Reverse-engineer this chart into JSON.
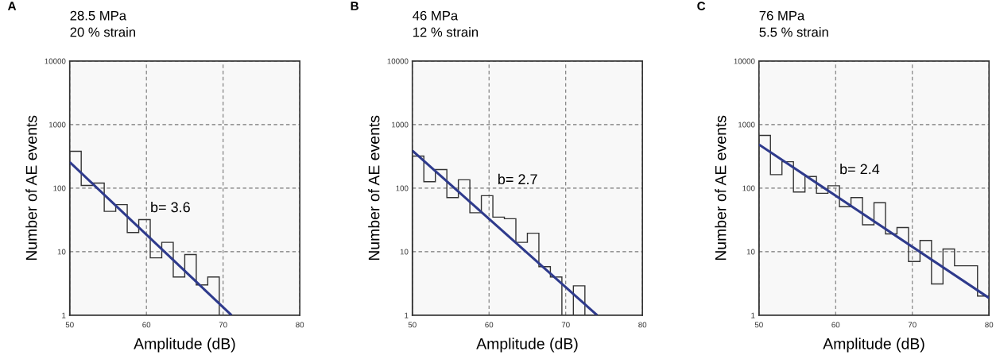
{
  "chart_data": [
    {
      "type": "histogram",
      "title": "28.5 MPa",
      "subtitle": "20 % strain",
      "xlabel": "Amplitude (dB)",
      "ylabel": "Number of AE events",
      "bins": [
        50,
        51.5,
        53,
        54.5,
        56,
        57.5,
        59,
        60.5,
        62,
        63.5,
        65,
        66.5,
        68,
        69.5
      ],
      "values": [
        380,
        110,
        120,
        43,
        55,
        20,
        32,
        8,
        14,
        4,
        9,
        3,
        4
      ],
      "color": "#333333",
      "series": [
        {
          "type": "line",
          "x": [
            50,
            71.1
          ],
          "values": [
            257,
            1
          ],
          "color": "#2e3a8c"
        }
      ],
      "annotations": [
        "A",
        "b= 3.6"
      ],
      "log": "y",
      "xlim": [
        50,
        80
      ],
      "ylim": [
        1,
        10000
      ],
      "xticks": [
        50,
        60,
        70,
        80
      ],
      "yticks": [
        1,
        10,
        100,
        1000,
        10000
      ],
      "grid": true
    },
    {
      "type": "histogram",
      "title": "46 MPa",
      "subtitle": "12 % strain",
      "xlabel": "Amplitude (dB)",
      "ylabel": "Number of AE events",
      "bins": [
        50,
        51.5,
        53,
        54.5,
        56,
        57.5,
        59,
        60.5,
        62,
        63.5,
        65,
        66.5,
        68,
        69.5,
        71,
        72.5
      ],
      "values": [
        320,
        126,
        196,
        71,
        135,
        41,
        76,
        35,
        33,
        14,
        19.5,
        5.8,
        4,
        1,
        2.9
      ],
      "color": "#333333",
      "series": [
        {
          "type": "line",
          "x": [
            50,
            74.1
          ],
          "values": [
            390,
            1
          ],
          "color": "#2e3a8c"
        }
      ],
      "annotations": [
        "B",
        "b= 2.7"
      ],
      "log": "y",
      "xlim": [
        50,
        80
      ],
      "ylim": [
        1,
        10000
      ],
      "xticks": [
        50,
        60,
        70,
        80
      ],
      "yticks": [
        1,
        10,
        100,
        1000,
        10000
      ],
      "grid": true
    },
    {
      "type": "histogram",
      "title": "76 MPa",
      "subtitle": "5.5 % strain",
      "xlabel": "Amplitude (dB)",
      "ylabel": "Number of AE events",
      "bins": [
        50,
        51.5,
        53,
        54.5,
        56,
        57.5,
        59,
        60.5,
        62,
        63.5,
        65,
        66.5,
        68,
        69.5,
        71,
        72.5,
        74,
        75.5,
        77,
        78.5,
        80
      ],
      "values": [
        675,
        163,
        260,
        87,
        152,
        83,
        109,
        51,
        71,
        26.5,
        59,
        19,
        24,
        7,
        15,
        3.1,
        11,
        6,
        6,
        2
      ],
      "color": "#333333",
      "series": [
        {
          "type": "line",
          "x": [
            50,
            80
          ],
          "values": [
            485,
            1.87
          ],
          "color": "#2e3a8c"
        }
      ],
      "annotations": [
        "C",
        "b= 2.4"
      ],
      "log": "y",
      "xlim": [
        50,
        80
      ],
      "ylim": [
        1,
        10000
      ],
      "xticks": [
        50,
        60,
        70,
        80
      ],
      "yticks": [
        1,
        10,
        100,
        1000,
        10000
      ],
      "grid": true
    }
  ]
}
